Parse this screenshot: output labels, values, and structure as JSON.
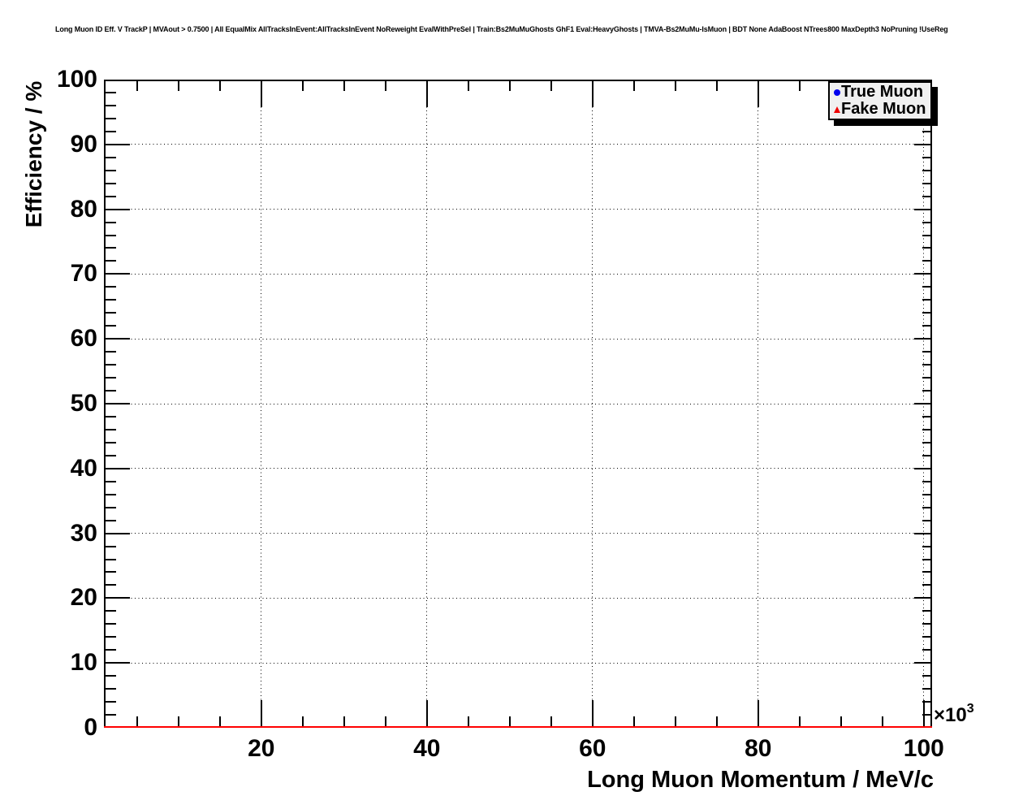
{
  "window": {
    "background": "#ffffff"
  },
  "header": {
    "title": "Long Muon ID Eff. V TrackP | MVAout > 0.7500 | All EqualMix AllTracksInEvent:AllTracksInEvent NoReweight EvalWithPreSel | Train:Bs2MuMuGhosts GhF1 Eval:HeavyGhosts | TMVA-Bs2MuMu-IsMuon | BDT None AdaBoost NTrees800 MaxDepth3 NoPruning !UseReg"
  },
  "legend": {
    "entries": [
      {
        "label": "True Muon",
        "marker": "circle",
        "color": "#0000ee"
      },
      {
        "label": "Fake Muon",
        "marker": "triangle",
        "color": "#ee0000"
      }
    ]
  },
  "chart_data": {
    "type": "scatter",
    "title": "Long Muon ID Eff. V TrackP | MVAout > 0.7500 | All EqualMix AllTracksInEvent:AllTracksInEvent NoReweight EvalWithPreSel | Train:Bs2MuMuGhosts GhF1 Eval:HeavyGhosts | TMVA-Bs2MuMu-IsMuon | BDT None AdaBoost NTrees800 MaxDepth3 NoPruning !UseReg",
    "xlabel": "Long Muon Momentum / MeV/c",
    "ylabel": "Efficiency / %",
    "x_axis_multiplier": {
      "base": "×10",
      "exponent": "3"
    },
    "xlim": [
      1,
      101
    ],
    "ylim": [
      0,
      100
    ],
    "x_major_ticks": [
      20,
      40,
      60,
      80,
      100
    ],
    "x_tick_labels": [
      "20",
      "40",
      "60",
      "80",
      "100"
    ],
    "x_minor_tick_step": 5,
    "y_major_ticks": [
      0,
      10,
      20,
      30,
      40,
      50,
      60,
      70,
      80,
      90,
      100
    ],
    "y_tick_labels": [
      "0",
      "10",
      "20",
      "30",
      "40",
      "50",
      "60",
      "70",
      "80",
      "90",
      "100"
    ],
    "y_minor_tick_step": 2,
    "grid": {
      "style": "dotted",
      "on_major_x": true,
      "on_major_y": true
    },
    "legend_position": "top-right",
    "series": [
      {
        "name": "True Muon",
        "marker": "circle",
        "color": "#0000ee",
        "points": []
      },
      {
        "name": "Fake Muon",
        "marker": "triangle",
        "color": "#ee0000",
        "line": {
          "y": 0,
          "x_start": 1,
          "x_end": 101,
          "color": "#ff0000",
          "width": 2
        }
      }
    ]
  }
}
